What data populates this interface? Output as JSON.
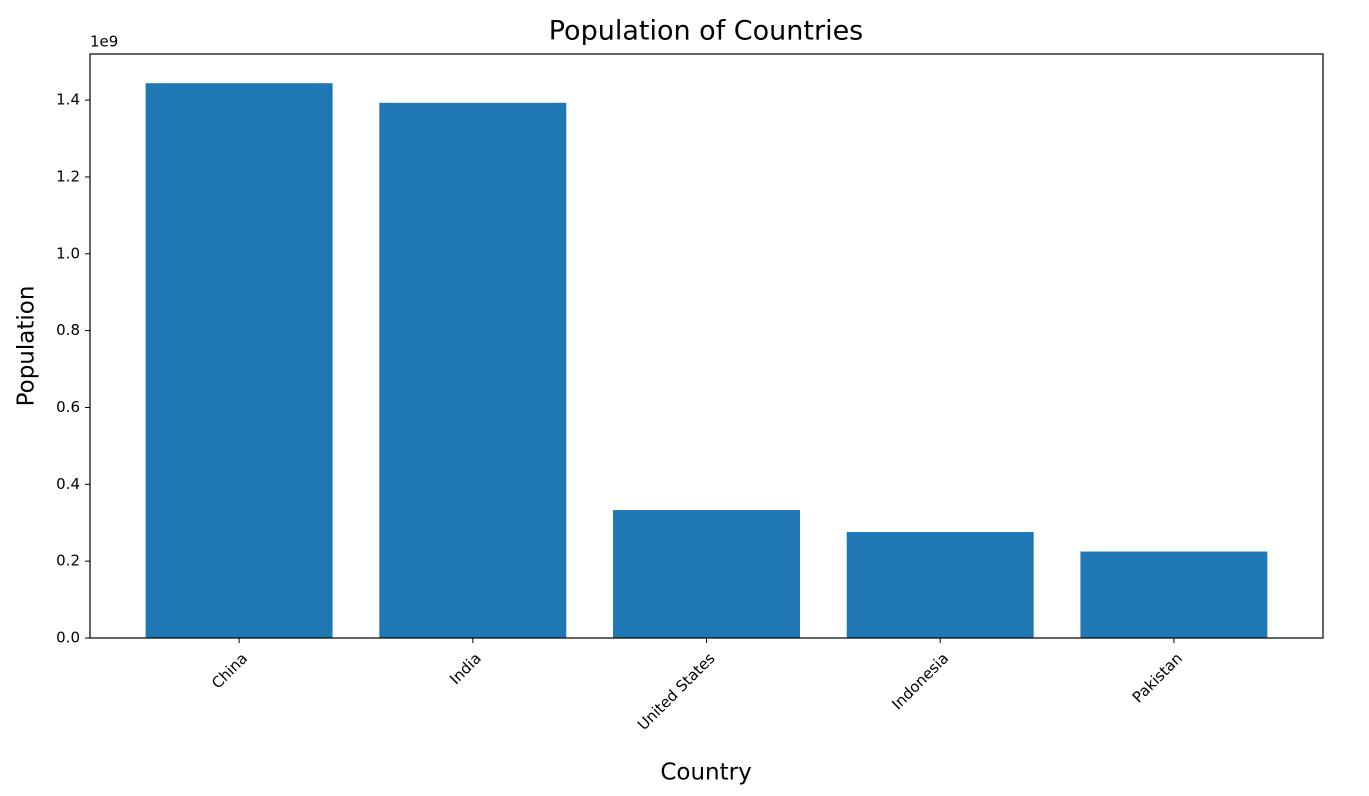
{
  "chart_data": {
    "type": "bar",
    "title": "Population of Countries",
    "x_label": "Country",
    "y_label": "Population",
    "y_offset_text": "1e9",
    "categories": [
      "China",
      "India",
      "United States",
      "Indonesia",
      "Pakistan"
    ],
    "values": [
      1444000000,
      1393000000,
      333000000,
      276000000,
      225000000
    ],
    "color": "#1f77b4",
    "ylim": [
      0,
      1520000000
    ],
    "yticks": [
      {
        "value": 0,
        "label": "0.0"
      },
      {
        "value": 200000000,
        "label": "0.2"
      },
      {
        "value": 400000000,
        "label": "0.4"
      },
      {
        "value": 600000000,
        "label": "0.6"
      },
      {
        "value": 800000000,
        "label": "0.8"
      },
      {
        "value": 1000000000,
        "label": "1.0"
      },
      {
        "value": 1200000000,
        "label": "1.2"
      },
      {
        "value": 1400000000,
        "label": "1.4"
      }
    ],
    "grid": false
  }
}
